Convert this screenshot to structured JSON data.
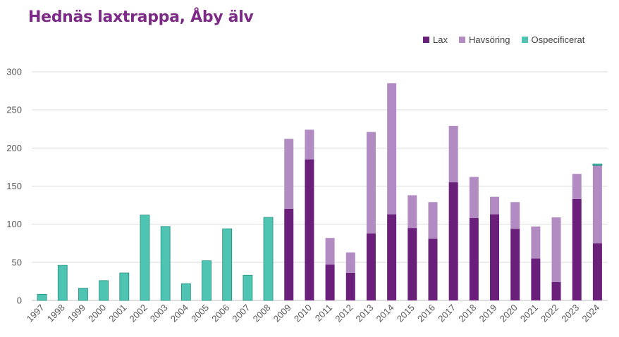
{
  "chart_data": {
    "type": "bar",
    "stacked": true,
    "title": "Hednäs laxtrappa, Åby älv",
    "xlabel": "",
    "ylabel": "",
    "ylim": [
      0,
      300
    ],
    "yticks": [
      0,
      50,
      100,
      150,
      200,
      250,
      300
    ],
    "grid": true,
    "legend_position": "top-right",
    "categories": [
      "1997",
      "1998",
      "1999",
      "2000",
      "2001",
      "2002",
      "2003",
      "2004",
      "2005",
      "2006",
      "2007",
      "2008",
      "2009",
      "2010",
      "2011",
      "2012",
      "2013",
      "2014",
      "2015",
      "2016",
      "2017",
      "2018",
      "2019",
      "2020",
      "2021",
      "2022",
      "2023",
      "2024"
    ],
    "series": [
      {
        "name": "Lax",
        "color": "#6a1f7a",
        "values": [
          0,
          0,
          0,
          0,
          0,
          0,
          0,
          0,
          0,
          0,
          0,
          0,
          120,
          185,
          47,
          36,
          88,
          113,
          95,
          81,
          155,
          108,
          113,
          94,
          55,
          24,
          133,
          75
        ]
      },
      {
        "name": "Havsöring",
        "color": "#b18bc2",
        "values": [
          0,
          0,
          0,
          0,
          0,
          0,
          0,
          0,
          0,
          0,
          0,
          0,
          92,
          39,
          35,
          27,
          133,
          172,
          43,
          48,
          74,
          54,
          23,
          35,
          42,
          85,
          33,
          102
        ]
      },
      {
        "name": "Ospecificerat",
        "color": "#4fc4b3",
        "values": [
          8,
          46,
          16,
          26,
          36,
          112,
          97,
          22,
          52,
          94,
          33,
          109,
          0,
          0,
          0,
          0,
          0,
          0,
          0,
          0,
          0,
          0,
          0,
          0,
          0,
          0,
          0,
          2
        ]
      }
    ]
  },
  "colors": {
    "title": "#7b2a85",
    "grid": "#d9d9d9",
    "axis": "#bfbfbf",
    "ospec_edge": "#1f8f7e"
  }
}
